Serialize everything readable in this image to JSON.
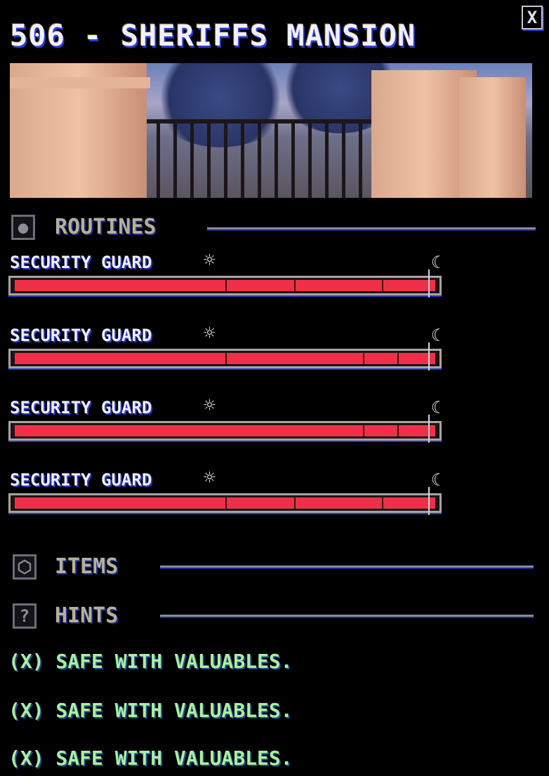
{
  "header": {
    "title": "506 - SHERIFFS MANSION",
    "close_label": "X"
  },
  "sections": {
    "routines": {
      "label": "ROUTINES",
      "icon": "person-icon"
    },
    "items": {
      "label": "ITEMS",
      "icon": "box-icon"
    },
    "hints": {
      "label": "HINTS",
      "icon": "question-icon",
      "icon_glyph": "?"
    }
  },
  "routines": [
    {
      "name": "SECURITY GUARD",
      "segments": [
        0.5,
        0.665,
        0.873
      ],
      "current_time": 0.98
    },
    {
      "name": "SECURITY GUARD",
      "segments": [
        0.5,
        0.828,
        0.91
      ],
      "current_time": 0.98
    },
    {
      "name": "SECURITY GUARD",
      "segments": [
        0.828,
        0.91
      ],
      "current_time": 0.98
    },
    {
      "name": "SECURITY GUARD",
      "segments": [
        0.5,
        0.665,
        0.873
      ],
      "current_time": 0.98
    }
  ],
  "icons": {
    "day": "sun-icon",
    "night": "moon-icon",
    "sun_glyph": "☼",
    "moon_glyph": "☾"
  },
  "hints": [
    "(X) SAFE WITH VALUABLES.",
    "(X) SAFE WITH VALUABLES.",
    "(X) SAFE WITH VALUABLES."
  ],
  "colors": {
    "bar_fill": "#f03048",
    "hint_text": "#a8f0a0",
    "section_label": "#b5b098"
  }
}
